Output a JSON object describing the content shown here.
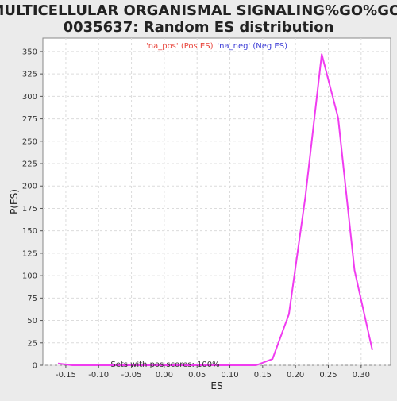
{
  "chart_data": {
    "type": "line",
    "title_lines": [
      "MULTICELLULAR ORGANISMAL SIGNALING%GO%GO:",
      "0035637: Random ES distribution"
    ],
    "xlabel": "ES",
    "ylabel": "P(ES)",
    "xlim": [
      -0.185,
      0.345
    ],
    "ylim": [
      0,
      365
    ],
    "xticks": [
      -0.15,
      -0.1,
      -0.05,
      0.0,
      0.05,
      0.1,
      0.15,
      0.2,
      0.25,
      0.3
    ],
    "xtick_labels": [
      "-0.15",
      "-0.10",
      "-0.05",
      "0.00",
      "0.05",
      "0.10",
      "0.15",
      "0.20",
      "0.25",
      "0.30"
    ],
    "yticks": [
      0,
      25,
      50,
      75,
      100,
      125,
      150,
      175,
      200,
      225,
      250,
      275,
      300,
      325,
      350
    ],
    "ytick_labels": [
      "0",
      "25",
      "50",
      "75",
      "100",
      "125",
      "150",
      "175",
      "200",
      "225",
      "250",
      "275",
      "300",
      "325",
      "350"
    ],
    "grid": true,
    "legend": {
      "placement": "top-center",
      "entries": [
        {
          "label": "'na_pos' (Pos ES)",
          "color": "#e8453c"
        },
        {
          "label": "'na_neg' (Neg ES)",
          "color": "#3f3fd6"
        }
      ]
    },
    "series": [
      {
        "color": "#f03cf0",
        "x": [
          -0.162,
          -0.14,
          -0.115,
          -0.09,
          -0.065,
          -0.04,
          -0.015,
          0.01,
          0.035,
          0.06,
          0.085,
          0.11,
          0.14,
          0.165,
          0.19,
          0.215,
          0.24,
          0.265,
          0.29,
          0.317
        ],
        "y": [
          2,
          0,
          0,
          0,
          0,
          0,
          0,
          0,
          0,
          0,
          0,
          0,
          0,
          7,
          57,
          188,
          347,
          276,
          106,
          17
        ]
      }
    ],
    "annotation": "Sets with pos scores: 100%"
  },
  "colors": {
    "background": "#ebebeb",
    "plot_background": "#ffffff",
    "grid": "#dcdcdc",
    "line": "#f03cf0"
  }
}
